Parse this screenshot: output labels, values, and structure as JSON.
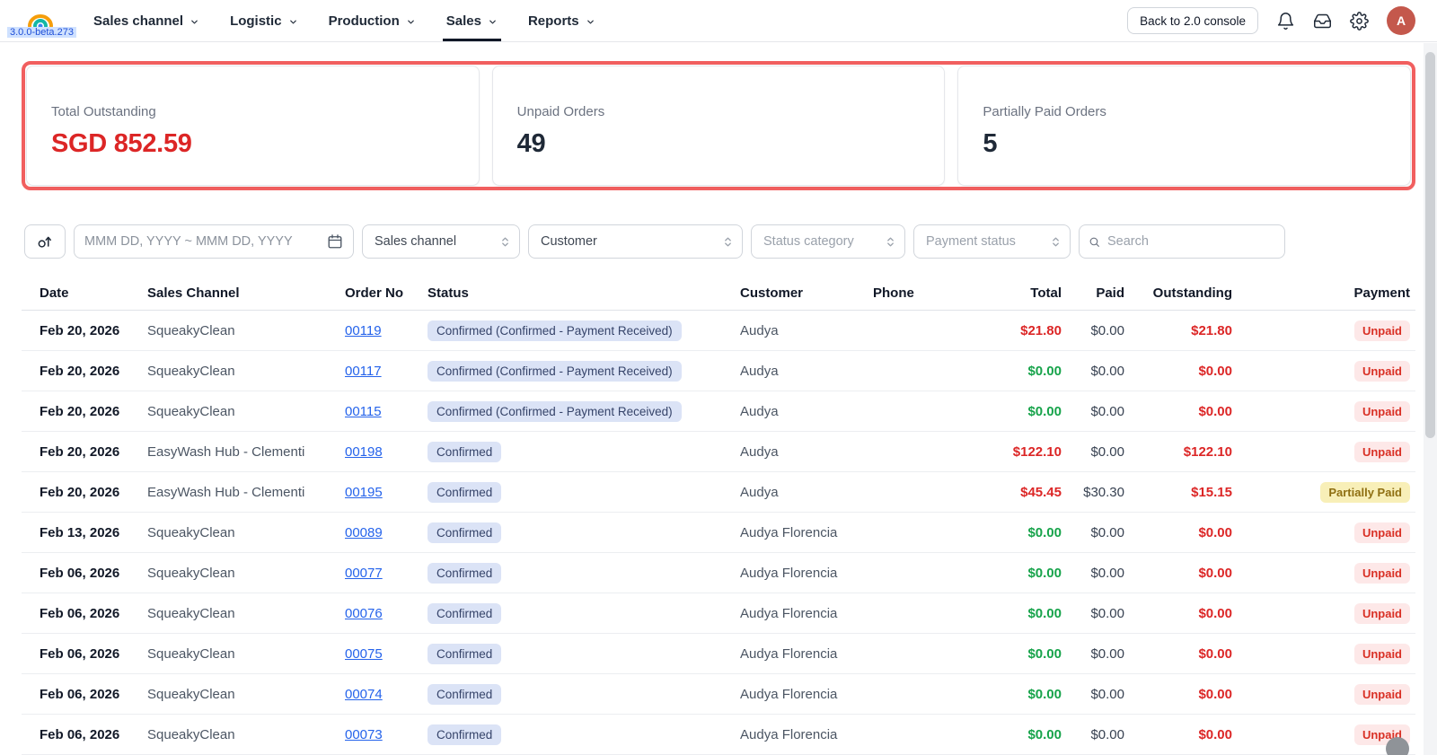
{
  "app": {
    "version": "3.0.0-beta.273",
    "avatar_initial": "A"
  },
  "header": {
    "nav": [
      {
        "label": "Sales channel",
        "active": false
      },
      {
        "label": "Logistic",
        "active": false
      },
      {
        "label": "Production",
        "active": false
      },
      {
        "label": "Sales",
        "active": true
      },
      {
        "label": "Reports",
        "active": false
      }
    ],
    "back_button_label": "Back to 2.0 console"
  },
  "summary_cards": [
    {
      "label": "Total Outstanding",
      "value": "SGD 852.59",
      "emphasis": "red"
    },
    {
      "label": "Unpaid Orders",
      "value": "49",
      "emphasis": "dark"
    },
    {
      "label": "Partially Paid Orders",
      "value": "5",
      "emphasis": "dark"
    }
  ],
  "filters": {
    "date_range_placeholder": "MMM DD, YYYY ~ MMM DD, YYYY",
    "selects": [
      {
        "label": "Sales channel",
        "muted": false
      },
      {
        "label": "Customer",
        "muted": false
      },
      {
        "label": "Status category",
        "muted": true
      },
      {
        "label": "Payment status",
        "muted": true
      }
    ],
    "search_placeholder": "Search"
  },
  "table": {
    "columns": [
      "Date",
      "Sales Channel",
      "Order No",
      "Status",
      "Customer",
      "Phone",
      "Total",
      "Paid",
      "Outstanding",
      "Payment"
    ],
    "rows": [
      {
        "date": "Feb 20, 2026",
        "sales_channel": "SqueakyClean",
        "order_no": "00119",
        "status": "Confirmed (Confirmed - Payment Received)",
        "customer": "Audya",
        "phone": "",
        "total": "$21.80",
        "total_color": "red",
        "paid": "$0.00",
        "outstanding": "$21.80",
        "payment": "Unpaid"
      },
      {
        "date": "Feb 20, 2026",
        "sales_channel": "SqueakyClean",
        "order_no": "00117",
        "status": "Confirmed (Confirmed - Payment Received)",
        "customer": "Audya",
        "phone": "",
        "total": "$0.00",
        "total_color": "green",
        "paid": "$0.00",
        "outstanding": "$0.00",
        "payment": "Unpaid"
      },
      {
        "date": "Feb 20, 2026",
        "sales_channel": "SqueakyClean",
        "order_no": "00115",
        "status": "Confirmed (Confirmed - Payment Received)",
        "customer": "Audya",
        "phone": "",
        "total": "$0.00",
        "total_color": "green",
        "paid": "$0.00",
        "outstanding": "$0.00",
        "payment": "Unpaid"
      },
      {
        "date": "Feb 20, 2026",
        "sales_channel": "EasyWash Hub - Clementi",
        "order_no": "00198",
        "status": "Confirmed",
        "customer": "Audya",
        "phone": "",
        "total": "$122.10",
        "total_color": "red",
        "paid": "$0.00",
        "outstanding": "$122.10",
        "payment": "Unpaid"
      },
      {
        "date": "Feb 20, 2026",
        "sales_channel": "EasyWash Hub - Clementi",
        "order_no": "00195",
        "status": "Confirmed",
        "customer": "Audya",
        "phone": "",
        "total": "$45.45",
        "total_color": "red",
        "paid": "$30.30",
        "outstanding": "$15.15",
        "payment": "Partially Paid"
      },
      {
        "date": "Feb 13, 2026",
        "sales_channel": "SqueakyClean",
        "order_no": "00089",
        "status": "Confirmed",
        "customer": "Audya Florencia",
        "phone": "",
        "total": "$0.00",
        "total_color": "green",
        "paid": "$0.00",
        "outstanding": "$0.00",
        "payment": "Unpaid"
      },
      {
        "date": "Feb 06, 2026",
        "sales_channel": "SqueakyClean",
        "order_no": "00077",
        "status": "Confirmed",
        "customer": "Audya Florencia",
        "phone": "",
        "total": "$0.00",
        "total_color": "green",
        "paid": "$0.00",
        "outstanding": "$0.00",
        "payment": "Unpaid"
      },
      {
        "date": "Feb 06, 2026",
        "sales_channel": "SqueakyClean",
        "order_no": "00076",
        "status": "Confirmed",
        "customer": "Audya Florencia",
        "phone": "",
        "total": "$0.00",
        "total_color": "green",
        "paid": "$0.00",
        "outstanding": "$0.00",
        "payment": "Unpaid"
      },
      {
        "date": "Feb 06, 2026",
        "sales_channel": "SqueakyClean",
        "order_no": "00075",
        "status": "Confirmed",
        "customer": "Audya Florencia",
        "phone": "",
        "total": "$0.00",
        "total_color": "green",
        "paid": "$0.00",
        "outstanding": "$0.00",
        "payment": "Unpaid"
      },
      {
        "date": "Feb 06, 2026",
        "sales_channel": "SqueakyClean",
        "order_no": "00074",
        "status": "Confirmed",
        "customer": "Audya Florencia",
        "phone": "",
        "total": "$0.00",
        "total_color": "green",
        "paid": "$0.00",
        "outstanding": "$0.00",
        "payment": "Unpaid"
      },
      {
        "date": "Feb 06, 2026",
        "sales_channel": "SqueakyClean",
        "order_no": "00073",
        "status": "Confirmed",
        "customer": "Audya Florencia",
        "phone": "",
        "total": "$0.00",
        "total_color": "green",
        "paid": "$0.00",
        "outstanding": "$0.00",
        "payment": "Unpaid"
      }
    ]
  },
  "colors": {
    "negative_text": "#dc2626",
    "positive_text": "#16a34a",
    "link": "#2563eb",
    "highlight_border": "#f15f5f",
    "status_badge_bg": "#dbe3f6",
    "unpaid_badge_bg": "#fde8e8",
    "partial_badge_bg": "#f8efb8"
  }
}
